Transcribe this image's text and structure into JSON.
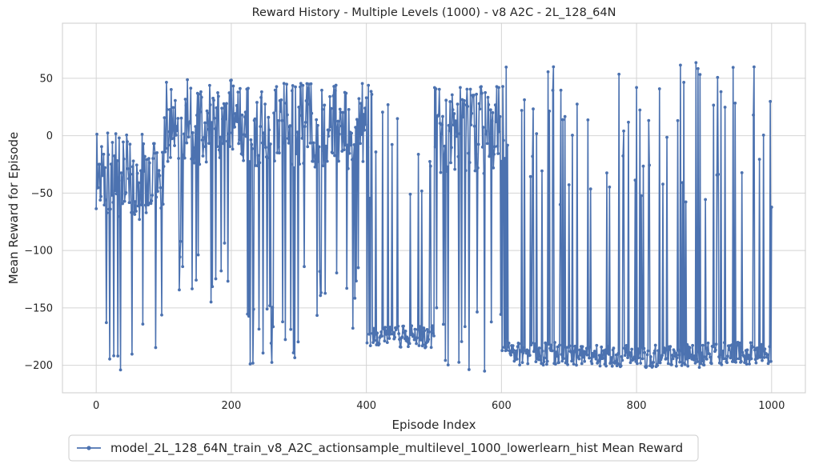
{
  "chart_data": {
    "type": "line",
    "title": "Reward History - Multiple Levels (1000) - v8 A2C - 2L_128_64N",
    "xlabel": "Episode Index",
    "ylabel": "Mean Reward for Episode",
    "xlim": [
      -50,
      1050
    ],
    "ylim": [
      -224,
      98
    ],
    "xticks": [
      0,
      200,
      400,
      600,
      800,
      1000
    ],
    "xtick_labels": [
      "0",
      "200",
      "400",
      "600",
      "800",
      "1000"
    ],
    "yticks": [
      -200,
      -150,
      -100,
      -50,
      0,
      50
    ],
    "ytick_labels": [
      "−200",
      "−150",
      "−100",
      "−50",
      "0",
      "50"
    ],
    "grid": true,
    "legend_position": "below-left",
    "series_color": "#4c72b0",
    "series": [
      {
        "name": "model_2L_128_64N_train_v8_A2C_actionsample_multilevel_1000_lowerlearn_hist Mean Reward",
        "segments": [
          {
            "x": [
              0,
              100
            ],
            "min": -205,
            "max": 68,
            "mean": -35,
            "spike": 0.12
          },
          {
            "x": [
              100,
              200
            ],
            "min": -150,
            "max": 72,
            "mean": 12,
            "spike": 0.12
          },
          {
            "x": [
              200,
              300
            ],
            "min": -205,
            "max": 66,
            "mean": 8,
            "spike": 0.1
          },
          {
            "x": [
              300,
              400
            ],
            "min": -170,
            "max": 70,
            "mean": 8,
            "spike": 0.1
          },
          {
            "x": [
              400,
              500
            ],
            "min": -208,
            "max": 60,
            "mean": -175,
            "spike": 0.1
          },
          {
            "x": [
              500,
              600
            ],
            "min": -208,
            "max": 84,
            "mean": 5,
            "spike": 0.12
          },
          {
            "x": [
              600,
              700
            ],
            "min": -208,
            "max": 64,
            "mean": -190,
            "spike": 0.2
          },
          {
            "x": [
              700,
              800
            ],
            "min": -208,
            "max": 58,
            "mean": -192,
            "spike": 0.18
          },
          {
            "x": [
              800,
              900
            ],
            "min": -208,
            "max": 64,
            "mean": -192,
            "spike": 0.16
          },
          {
            "x": [
              900,
              1000
            ],
            "min": -208,
            "max": 60,
            "mean": -190,
            "spike": 0.16
          }
        ]
      }
    ]
  }
}
